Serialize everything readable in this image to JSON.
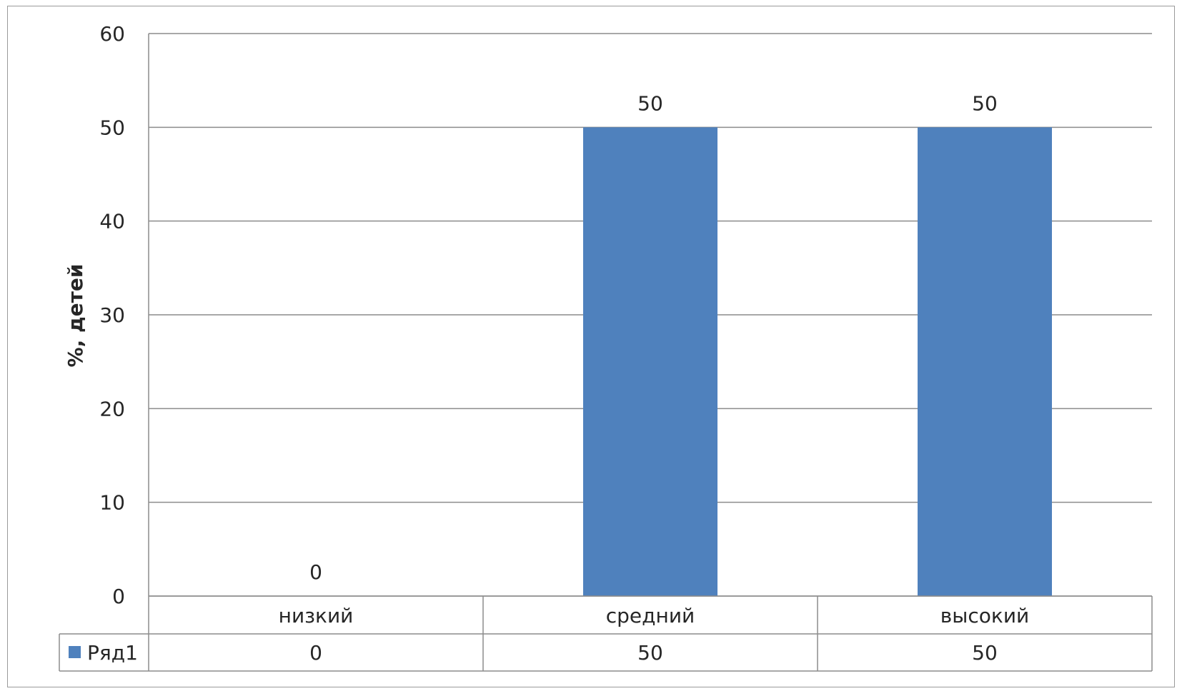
{
  "chart_data": {
    "type": "bar",
    "categories": [
      "низкий",
      "средний",
      "высокий"
    ],
    "series": [
      {
        "name": "Ряд1",
        "values": [
          0,
          50,
          50
        ],
        "color": "#4f81bd"
      }
    ],
    "data_labels": [
      "0",
      "50",
      "50"
    ],
    "ylabel": "%, детей",
    "ylim": [
      0,
      60
    ],
    "yticks": [
      "0",
      "10",
      "20",
      "30",
      "40",
      "50",
      "60"
    ],
    "grid": true,
    "data_table": true,
    "table_values": [
      "0",
      "50",
      "50"
    ]
  }
}
